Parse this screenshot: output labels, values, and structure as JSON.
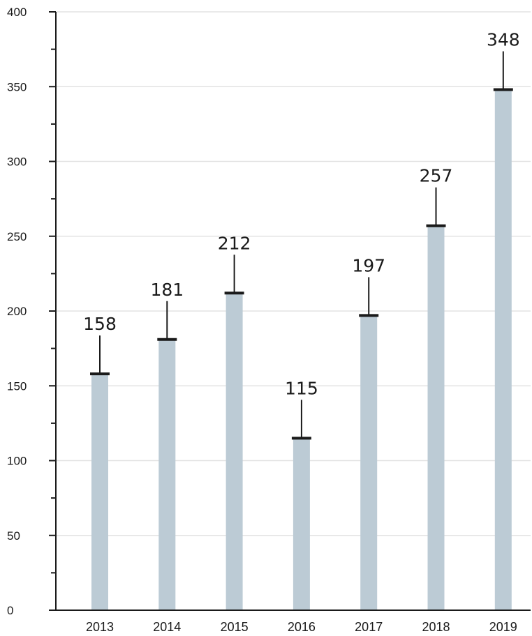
{
  "chart_data": {
    "type": "bar",
    "categories": [
      "2013",
      "2014",
      "2015",
      "2016",
      "2017",
      "2018",
      "2019"
    ],
    "values": [
      158,
      181,
      212,
      115,
      197,
      257,
      348
    ],
    "data_labels": [
      "158",
      "181",
      "212",
      "115",
      "197",
      "257",
      "348"
    ],
    "title": "",
    "xlabel": "",
    "ylabel": "",
    "ylim": [
      0,
      400
    ],
    "yticks": [
      0,
      50,
      100,
      150,
      200,
      250,
      300,
      350,
      400
    ],
    "ytick_labels": [
      "0",
      "50",
      "100",
      "150",
      "200",
      "250",
      "300",
      "350",
      "400"
    ],
    "minor_tick_step": 25,
    "grid": true,
    "legend": "none",
    "colors": {
      "bar": "#bccbd5",
      "bar_cap": "#1a1a1a",
      "axis": "#1a1a1a",
      "grid": "#e3e3e3",
      "text": "#1a1a1a"
    }
  }
}
